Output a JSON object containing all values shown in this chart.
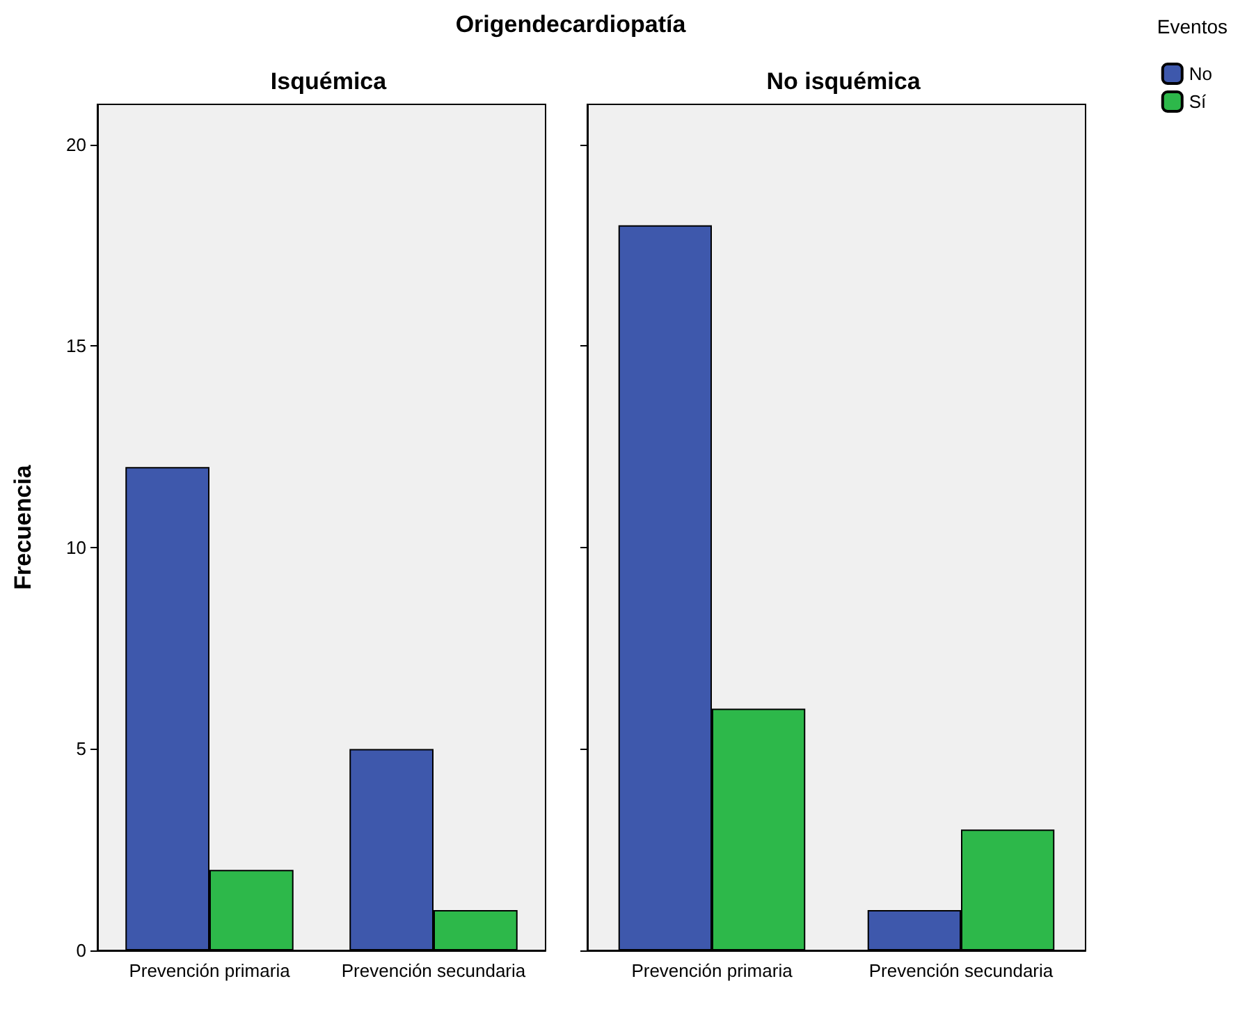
{
  "chart_data": [
    {
      "type": "bar",
      "title": "Isquémica",
      "ylabel": "Frecuencia",
      "annotations": [
        "Origendecardiopatía"
      ],
      "categories": [
        "Prevención primaria",
        "Prevención secundaria"
      ],
      "series": [
        {
          "color": "#3e58ac",
          "values": [
            12,
            5
          ]
        },
        {
          "color": "#2db84a",
          "values": [
            2,
            1
          ]
        }
      ],
      "ylim": [
        0,
        21
      ],
      "yticks": [
        0,
        5,
        10,
        15,
        20
      ],
      "grid": false,
      "legend": false
    },
    {
      "type": "bar",
      "title": "No isquémica",
      "legend_title": "Eventos",
      "categories": [
        "Prevención primaria",
        "Prevención secundaria"
      ],
      "series": [
        {
          "name": "No",
          "color": "#3e58ac",
          "values": [
            18,
            1
          ]
        },
        {
          "name": "Sí",
          "color": "#2db84a",
          "values": [
            6,
            3
          ]
        }
      ],
      "ylim": [
        0,
        21
      ],
      "yticks": [
        0,
        5,
        10,
        15,
        20
      ],
      "grid": false,
      "legend": "right",
      "tick_labels": "x"
    }
  ]
}
